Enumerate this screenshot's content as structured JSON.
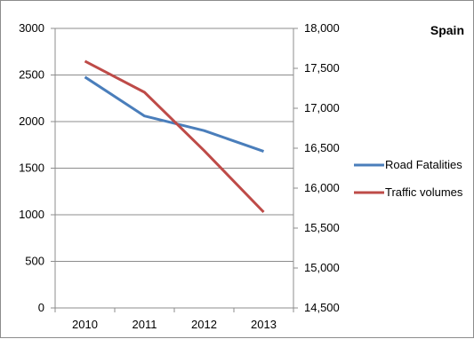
{
  "chart_data": {
    "type": "line",
    "title": "Spain",
    "categories": [
      "2010",
      "2011",
      "2012",
      "2013"
    ],
    "series": [
      {
        "name": "Road Fatalities",
        "axis": "left",
        "color": "#4A7EBB",
        "values": [
          2478,
          2060,
          1903,
          1680
        ]
      },
      {
        "name": "Traffic volumes",
        "axis": "right",
        "color": "#BE4B48",
        "values": [
          17590,
          17200,
          16470,
          15700
        ]
      }
    ],
    "y_left": {
      "min": 0,
      "max": 3000,
      "step": 500,
      "tick_labels": [
        "0",
        "500",
        "1000",
        "1500",
        "2000",
        "2500",
        "3000"
      ]
    },
    "y_right": {
      "min": 14500,
      "max": 18000,
      "step": 500,
      "tick_labels": [
        "14,500",
        "15,000",
        "15,500",
        "16,000",
        "16,500",
        "17,000",
        "17,500",
        "18,000"
      ]
    },
    "grid": true,
    "legend_position": "right"
  }
}
